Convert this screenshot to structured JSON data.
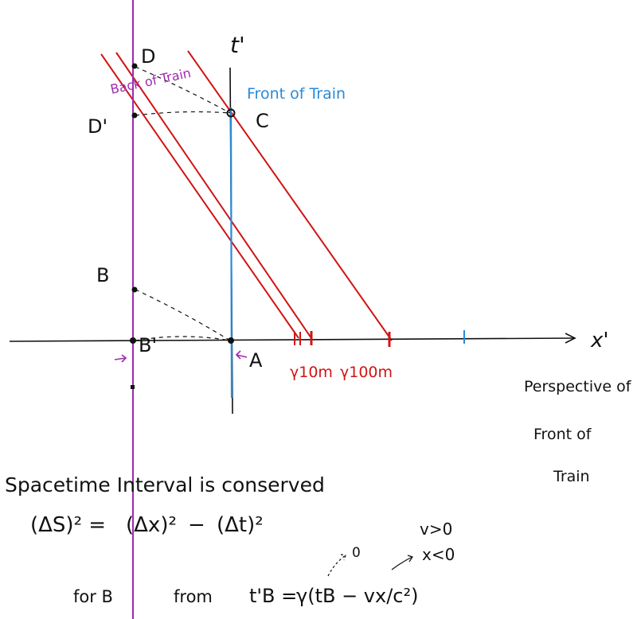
{
  "colors": {
    "ink": "#111111",
    "red": "#d01414",
    "blue": "#2a8ad8",
    "purple": "#a02ab0"
  },
  "diagram": {
    "axes": {
      "t_prime": "t'",
      "x_prime": "x'"
    },
    "events": {
      "A": "A",
      "B": "B",
      "B_prime": "B'",
      "C": "C",
      "D": "D",
      "D_prime": "D'"
    },
    "worldline_labels": {
      "front": "Front of Train",
      "back": "Back of Train"
    },
    "tick_labels": {
      "gamma_10": "γ10m",
      "gamma_100": "γ100m"
    },
    "perspective_note": [
      "Perspective of",
      "Front of",
      "Train"
    ]
  },
  "notes": {
    "interval_title": "Spacetime Interval is conserved",
    "interval_formula_lhs": "(ΔS)² =",
    "interval_formula_term1": "(Δx)²",
    "interval_formula_minus": "−",
    "interval_formula_term2": "(Δt)²",
    "condition_v": "v>0",
    "condition_x": "x<0",
    "zero_mark": "0",
    "for_b": "for B",
    "from": "from",
    "lorentz_lhs": "t'B =",
    "lorentz_rhs": "γ(tB − vx/c²)"
  }
}
